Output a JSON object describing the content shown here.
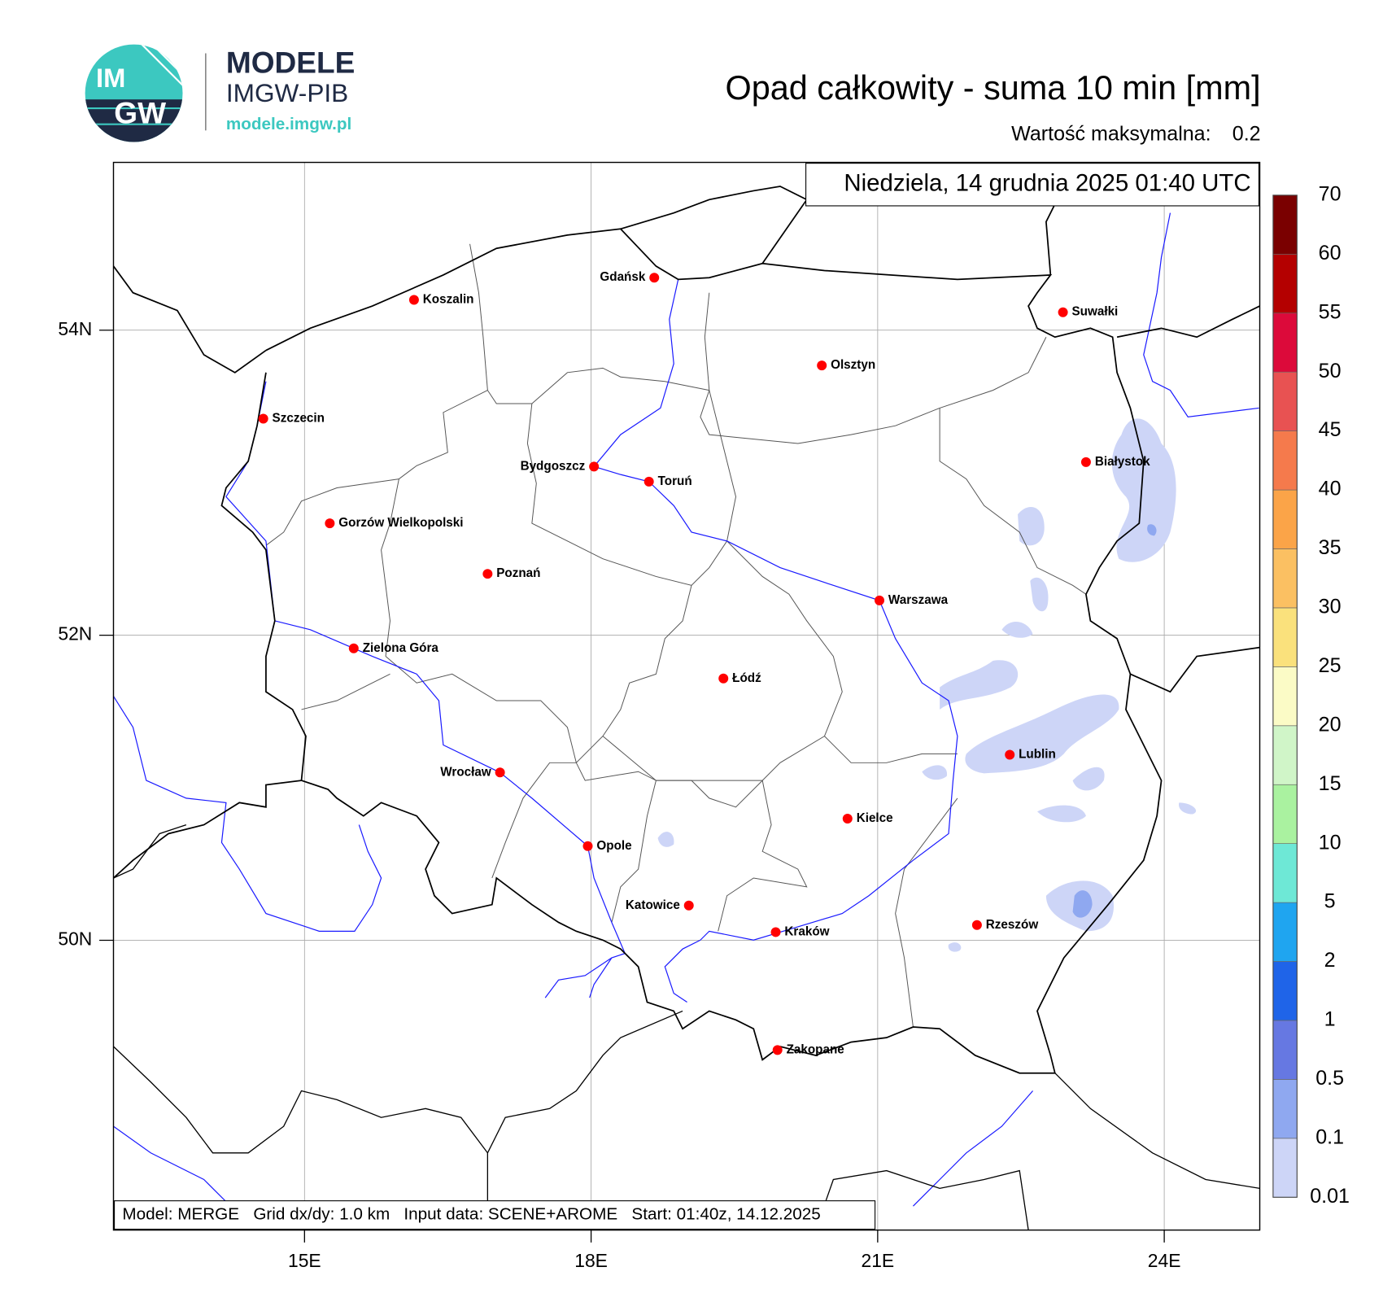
{
  "logo": {
    "mark_top": "IM",
    "mark_bottom": "GW",
    "title": "MODELE",
    "subtitle": "IMGW-PIB",
    "url": "modele.imgw.pl"
  },
  "header": {
    "title": "Opad całkowity - suma 10 min [mm]",
    "max_label": "Wartość maksymalna:",
    "max_value": 0.2
  },
  "map": {
    "valid_time": "Niedziela, 14 grudnia 2025 01:40 UTC",
    "lonlim": [
      13,
      25
    ],
    "latlim": [
      48.1,
      55.1
    ],
    "lonticks": [
      {
        "value": 15,
        "label": "15E"
      },
      {
        "value": 18,
        "label": "18E"
      },
      {
        "value": 21,
        "label": "21E"
      },
      {
        "value": 24,
        "label": "24E"
      }
    ],
    "latticks": [
      {
        "value": 50,
        "label": "50N"
      },
      {
        "value": 52,
        "label": "52N"
      },
      {
        "value": 54,
        "label": "54N"
      }
    ],
    "grid": true,
    "cities": [
      "Gdańsk",
      "Koszalin",
      "Suwałki",
      "Olsztyn",
      "Szczecin",
      "Białystok",
      "Bydgoszcz",
      "Toruń",
      "Gorzów Wielkopolski",
      "Poznań",
      "Warszawa",
      "Zielona Góra",
      "Łódź",
      "Lublin",
      "Wrocław",
      "Kielce",
      "Opole",
      "Katowice",
      "Kraków",
      "Rzeszów",
      "Zakopane"
    ],
    "footer": "Model: MERGE   Grid dx/dy: 1.0 km   Input data: SCENE+AROME   Start: 01:40z, 14.12.2025"
  },
  "colorbar": {
    "levels": [
      0.01,
      0.1,
      0.5,
      1,
      2,
      5,
      10,
      15,
      20,
      25,
      30,
      35,
      40,
      45,
      50,
      55,
      60,
      70
    ],
    "colors": [
      "#cdd5f7",
      "#8fa8f0",
      "#6678e2",
      "#1f64e8",
      "#1fa5f0",
      "#6ee8d6",
      "#aaf2a0",
      "#d0f5c8",
      "#fbfbc6",
      "#fae17c",
      "#fbc062",
      "#fba448",
      "#f57a4c",
      "#e85252",
      "#dc0a3a",
      "#b40000",
      "#7a0000"
    ]
  }
}
